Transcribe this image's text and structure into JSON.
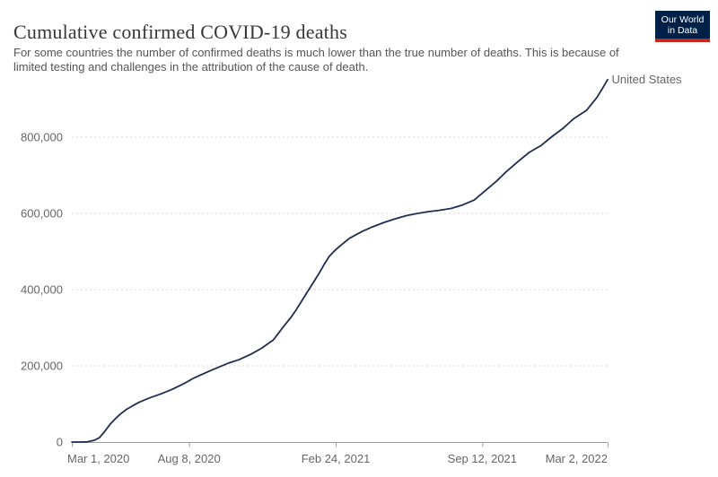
{
  "header": {
    "title": "Cumulative confirmed COVID-19 deaths",
    "subtitle": "For some countries the number of confirmed deaths is much lower than the true number of deaths. This is because of limited testing and challenges in the attribution of the cause of death."
  },
  "logo": {
    "line1": "Our World",
    "line2": "in Data",
    "bg_color": "#002147",
    "bar_color": "#c5281c"
  },
  "colors": {
    "line": "#1f2e50",
    "grid": "#dadada",
    "axis": "#9e9e9e",
    "tick_text": "#666666"
  },
  "chart_data": {
    "type": "line",
    "title": "Cumulative confirmed COVID-19 deaths",
    "grid": "horizontal dashed gridlines",
    "legend_position": "line-end label",
    "end_label": "United States",
    "x_axis": {
      "unit": "days since Mar 1, 2020",
      "domain": [
        0,
        731
      ],
      "ticks": [
        {
          "day": 0,
          "label": "Mar 1, 2020"
        },
        {
          "day": 160,
          "label": "Aug 8, 2020"
        },
        {
          "day": 360,
          "label": "Feb 24, 2021"
        },
        {
          "day": 560,
          "label": "Sep 12, 2021"
        },
        {
          "day": 731,
          "label": "Mar 2, 2022"
        }
      ]
    },
    "y_axis": {
      "domain": [
        0,
        960000
      ],
      "ticks": [
        {
          "value": 0,
          "label": "0"
        },
        {
          "value": 200000,
          "label": "200,000"
        },
        {
          "value": 400000,
          "label": "400,000"
        },
        {
          "value": 600000,
          "label": "600,000"
        },
        {
          "value": 800000,
          "label": "800,000"
        }
      ]
    },
    "series": [
      {
        "name": "United States",
        "color": "#1f2e50",
        "points_format": [
          "day_since_2020-03-01",
          "cumulative_deaths_approx"
        ],
        "points": [
          [
            0,
            1
          ],
          [
            7,
            15
          ],
          [
            14,
            60
          ],
          [
            21,
            500
          ],
          [
            31,
            4600
          ],
          [
            38,
            12000
          ],
          [
            45,
            28300
          ],
          [
            52,
            46000
          ],
          [
            61,
            64300
          ],
          [
            68,
            76000
          ],
          [
            75,
            86000
          ],
          [
            83,
            95000
          ],
          [
            92,
            104400
          ],
          [
            106,
            115700
          ],
          [
            122,
            126600
          ],
          [
            136,
            137400
          ],
          [
            153,
            153300
          ],
          [
            167,
            168400
          ],
          [
            184,
            183000
          ],
          [
            198,
            194500
          ],
          [
            214,
            207200
          ],
          [
            228,
            216000
          ],
          [
            245,
            231000
          ],
          [
            259,
            246100
          ],
          [
            275,
            268000
          ],
          [
            289,
            303400
          ],
          [
            299,
            327000
          ],
          [
            306,
            346600
          ],
          [
            313,
            368000
          ],
          [
            320,
            389600
          ],
          [
            328,
            414000
          ],
          [
            337,
            441300
          ],
          [
            344,
            465000
          ],
          [
            351,
            486900
          ],
          [
            358,
            501000
          ],
          [
            365,
            513100
          ],
          [
            379,
            534900
          ],
          [
            396,
            552400
          ],
          [
            410,
            564400
          ],
          [
            426,
            576200
          ],
          [
            440,
            585000
          ],
          [
            457,
            594300
          ],
          [
            471,
            599800
          ],
          [
            487,
            604700
          ],
          [
            501,
            608100
          ],
          [
            518,
            613200
          ],
          [
            532,
            621400
          ],
          [
            549,
            635000
          ],
          [
            563,
            658000
          ],
          [
            579,
            684000
          ],
          [
            593,
            710000
          ],
          [
            610,
            738000
          ],
          [
            624,
            760000
          ],
          [
            640,
            778000
          ],
          [
            654,
            800000
          ],
          [
            671,
            824500
          ],
          [
            685,
            849000
          ],
          [
            702,
            870000
          ],
          [
            716,
            903000
          ],
          [
            724,
            928000
          ],
          [
            731,
            951000
          ]
        ]
      }
    ]
  }
}
